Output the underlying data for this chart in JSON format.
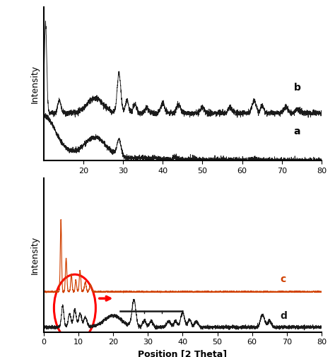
{
  "top_panel": {
    "xlabel": "Position [2 Theta]",
    "ylabel": "Intensity",
    "xlim": [
      10,
      80
    ],
    "xticks": [
      20,
      30,
      40,
      50,
      60,
      70,
      80
    ],
    "label_a": "a",
    "label_b": "b"
  },
  "bottom_panel": {
    "xlabel": "Position [2 Theta]",
    "ylabel": "Intensity",
    "xlim": [
      0,
      80
    ],
    "xticks": [
      0,
      10,
      20,
      30,
      40,
      50,
      60,
      70,
      80
    ],
    "label_c": "c",
    "label_d": "d",
    "color_c": "#d04000",
    "color_d": "#1a1a1a"
  }
}
